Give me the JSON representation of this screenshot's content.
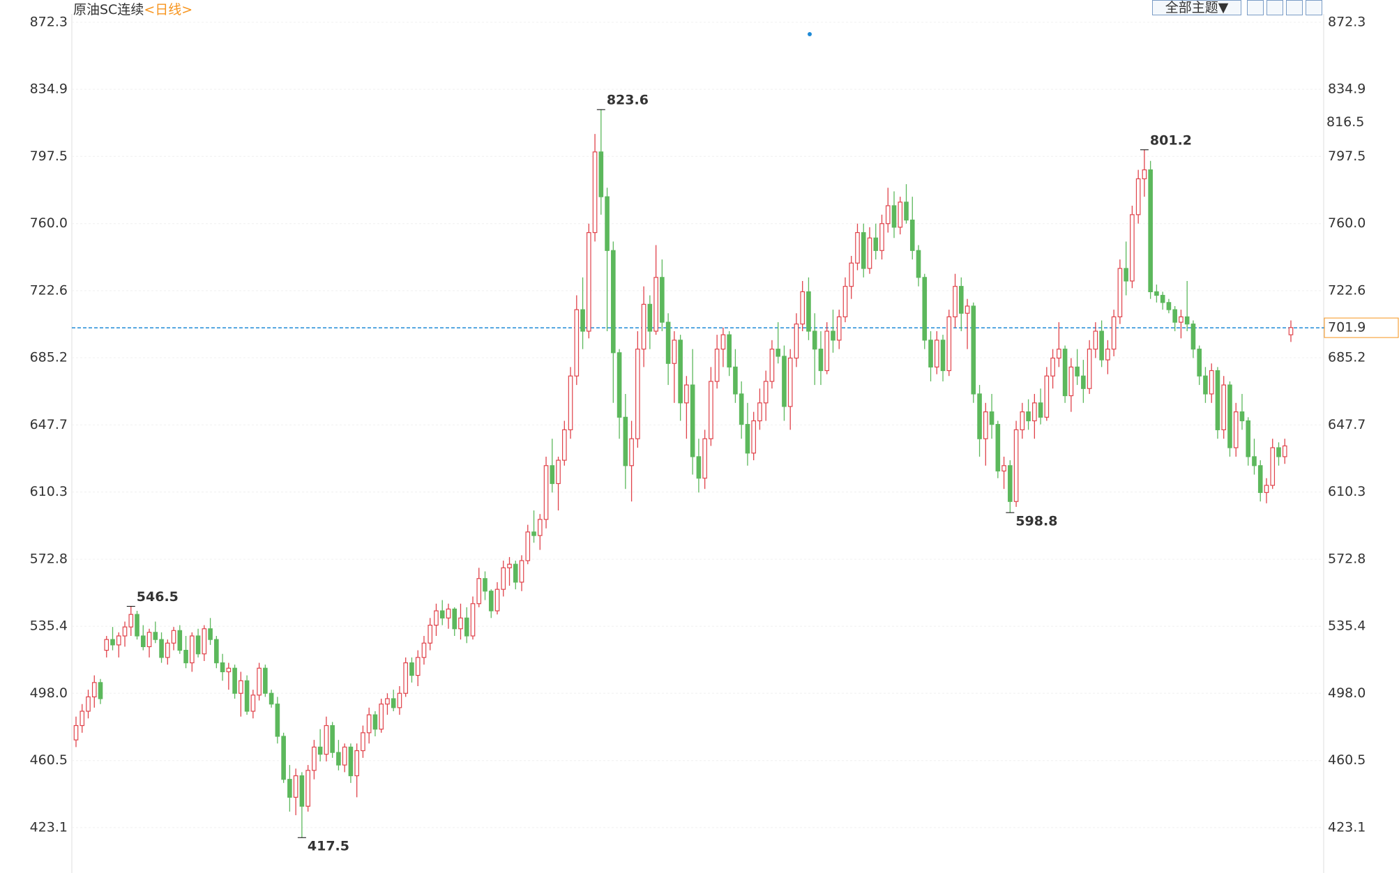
{
  "toolbar": {
    "theme_button": "全部主题▼"
  },
  "chart_data": {
    "type": "candlestick",
    "title": "原油SC连续",
    "period": "<日线>",
    "up_color": "#e0424a",
    "down_color": "#5cb85c",
    "last_price": 701.9,
    "last_price_color": "#f7941d",
    "marker_price": 816.5,
    "price_line_color": "#1f8ad6",
    "grid": true,
    "ylim": [
      399.7,
      872.3
    ],
    "yticks": [
      {
        "value": 423.1,
        "label": "423.1"
      },
      460.5,
      {
        "value": 498,
        "label": "498.0"
      },
      535.4,
      572.8,
      610.3,
      647.7,
      685.2,
      722.6,
      {
        "value": 760,
        "label": "760.0"
      },
      797.5,
      834.9,
      872.3
    ],
    "ohlc": [
      [
        472,
        485,
        468,
        480
      ],
      [
        480,
        492,
        476,
        488
      ],
      [
        488,
        500,
        484,
        496
      ],
      [
        496,
        508,
        490,
        504
      ],
      [
        504,
        506,
        492,
        495
      ],
      [
        522,
        530,
        518,
        528
      ],
      [
        528,
        535,
        522,
        525
      ],
      [
        525,
        532,
        518,
        530
      ],
      [
        530,
        538,
        524,
        535
      ],
      [
        535,
        546.5,
        530,
        542
      ],
      [
        542,
        544,
        528,
        530
      ],
      [
        530,
        536,
        522,
        524
      ],
      [
        524,
        534,
        518,
        532
      ],
      [
        532,
        538,
        526,
        528
      ],
      [
        528,
        532,
        515,
        518
      ],
      [
        518,
        528,
        514,
        526
      ],
      [
        526,
        535,
        522,
        533
      ],
      [
        533,
        536,
        520,
        522
      ],
      [
        522,
        530,
        512,
        515
      ],
      [
        515,
        532,
        510,
        530
      ],
      [
        530,
        534,
        518,
        520
      ],
      [
        520,
        536,
        516,
        534
      ],
      [
        534,
        540,
        525,
        528
      ],
      [
        528,
        530,
        512,
        515
      ],
      [
        515,
        520,
        505,
        510
      ],
      [
        510,
        515,
        500,
        512
      ],
      [
        512,
        514,
        495,
        498
      ],
      [
        498,
        510,
        485,
        505
      ],
      [
        505,
        508,
        486,
        488
      ],
      [
        488,
        500,
        484,
        497
      ],
      [
        497,
        515,
        494,
        512
      ],
      [
        512,
        514,
        496,
        498
      ],
      [
        498,
        500,
        490,
        492
      ],
      [
        492,
        496,
        470,
        474
      ],
      [
        474,
        476,
        448,
        450
      ],
      [
        450,
        458,
        432,
        440
      ],
      [
        440,
        456,
        430,
        452
      ],
      [
        452,
        454,
        417.5,
        435
      ],
      [
        435,
        458,
        432,
        455
      ],
      [
        455,
        472,
        450,
        468
      ],
      [
        468,
        478,
        460,
        464
      ],
      [
        464,
        485,
        460,
        480
      ],
      [
        480,
        482,
        462,
        465
      ],
      [
        465,
        472,
        455,
        458
      ],
      [
        458,
        470,
        454,
        468
      ],
      [
        468,
        470,
        448,
        452
      ],
      [
        452,
        470,
        440,
        466
      ],
      [
        466,
        480,
        462,
        476
      ],
      [
        476,
        490,
        470,
        486
      ],
      [
        486,
        488,
        474,
        478
      ],
      [
        478,
        495,
        476,
        492
      ],
      [
        492,
        498,
        486,
        495
      ],
      [
        495,
        500,
        488,
        490
      ],
      [
        490,
        502,
        486,
        498
      ],
      [
        498,
        518,
        496,
        515
      ],
      [
        515,
        518,
        504,
        508
      ],
      [
        508,
        522,
        502,
        518
      ],
      [
        518,
        530,
        514,
        526
      ],
      [
        526,
        540,
        522,
        536
      ],
      [
        536,
        548,
        530,
        544
      ],
      [
        544,
        550,
        536,
        540
      ],
      [
        540,
        548,
        534,
        545
      ],
      [
        545,
        546,
        530,
        534
      ],
      [
        534,
        548,
        528,
        540
      ],
      [
        540,
        546,
        526,
        530
      ],
      [
        530,
        552,
        528,
        548
      ],
      [
        548,
        568,
        546,
        562
      ],
      [
        562,
        566,
        550,
        555
      ],
      [
        555,
        556,
        540,
        544
      ],
      [
        544,
        560,
        542,
        556
      ],
      [
        556,
        572,
        552,
        568
      ],
      [
        568,
        574,
        558,
        570
      ],
      [
        570,
        572,
        556,
        560
      ],
      [
        560,
        575,
        555,
        572
      ],
      [
        572,
        592,
        570,
        588
      ],
      [
        588,
        600,
        582,
        586
      ],
      [
        586,
        598,
        578,
        595
      ],
      [
        595,
        630,
        590,
        625
      ],
      [
        625,
        640,
        610,
        615
      ],
      [
        615,
        630,
        600,
        628
      ],
      [
        628,
        650,
        625,
        645
      ],
      [
        645,
        680,
        640,
        675
      ],
      [
        675,
        720,
        670,
        712
      ],
      [
        712,
        730,
        690,
        700
      ],
      [
        700,
        760,
        696,
        755
      ],
      [
        755,
        810,
        750,
        800
      ],
      [
        800,
        823.6,
        765,
        775
      ],
      [
        775,
        780,
        700,
        745
      ],
      [
        745,
        750,
        660,
        688
      ],
      [
        688,
        690,
        640,
        652
      ],
      [
        652,
        665,
        612,
        625
      ],
      [
        625,
        650,
        605,
        640
      ],
      [
        640,
        700,
        635,
        690
      ],
      [
        690,
        725,
        680,
        715
      ],
      [
        715,
        720,
        690,
        700
      ],
      [
        700,
        748,
        698,
        730
      ],
      [
        730,
        740,
        700,
        705
      ],
      [
        705,
        710,
        670,
        682
      ],
      [
        682,
        700,
        660,
        695
      ],
      [
        695,
        698,
        650,
        660
      ],
      [
        660,
        675,
        640,
        670
      ],
      [
        670,
        690,
        620,
        630
      ],
      [
        630,
        640,
        610,
        618
      ],
      [
        618,
        645,
        612,
        640
      ],
      [
        640,
        680,
        636,
        672
      ],
      [
        672,
        698,
        668,
        690
      ],
      [
        690,
        702,
        680,
        698
      ],
      [
        698,
        700,
        675,
        680
      ],
      [
        680,
        690,
        660,
        665
      ],
      [
        665,
        672,
        640,
        648
      ],
      [
        648,
        660,
        625,
        632
      ],
      [
        632,
        655,
        628,
        650
      ],
      [
        650,
        668,
        645,
        660
      ],
      [
        660,
        678,
        650,
        672
      ],
      [
        672,
        695,
        668,
        690
      ],
      [
        690,
        705,
        682,
        686
      ],
      [
        686,
        692,
        650,
        658
      ],
      [
        658,
        690,
        645,
        685
      ],
      [
        685,
        710,
        680,
        704
      ],
      [
        704,
        728,
        700,
        722
      ],
      [
        722,
        730,
        695,
        700
      ],
      [
        700,
        710,
        670,
        690
      ],
      [
        690,
        700,
        670,
        678
      ],
      [
        678,
        705,
        676,
        700
      ],
      [
        700,
        712,
        688,
        695
      ],
      [
        695,
        712,
        690,
        708
      ],
      [
        708,
        730,
        705,
        725
      ],
      [
        725,
        742,
        718,
        738
      ],
      [
        738,
        760,
        734,
        755
      ],
      [
        755,
        760,
        730,
        735
      ],
      [
        735,
        758,
        732,
        752
      ],
      [
        752,
        760,
        740,
        745
      ],
      [
        745,
        765,
        740,
        760
      ],
      [
        760,
        780,
        755,
        770
      ],
      [
        770,
        778,
        752,
        758
      ],
      [
        758,
        775,
        754,
        772
      ],
      [
        772,
        782,
        760,
        762
      ],
      [
        762,
        775,
        740,
        745
      ],
      [
        745,
        748,
        725,
        730
      ],
      [
        730,
        732,
        690,
        695
      ],
      [
        695,
        700,
        672,
        680
      ],
      [
        680,
        700,
        676,
        695
      ],
      [
        695,
        698,
        672,
        678
      ],
      [
        678,
        712,
        675,
        708
      ],
      [
        708,
        732,
        702,
        725
      ],
      [
        725,
        730,
        700,
        710
      ],
      [
        710,
        718,
        690,
        714
      ],
      [
        714,
        716,
        660,
        665
      ],
      [
        665,
        670,
        630,
        640
      ],
      [
        640,
        660,
        625,
        655
      ],
      [
        655,
        665,
        640,
        648
      ],
      [
        648,
        650,
        618,
        622
      ],
      [
        622,
        630,
        612,
        625
      ],
      [
        625,
        628,
        598.8,
        605
      ],
      [
        605,
        650,
        602,
        645
      ],
      [
        645,
        660,
        640,
        655
      ],
      [
        655,
        662,
        645,
        650
      ],
      [
        650,
        665,
        640,
        660
      ],
      [
        660,
        668,
        648,
        652
      ],
      [
        652,
        680,
        650,
        675
      ],
      [
        675,
        690,
        668,
        685
      ],
      [
        685,
        705,
        680,
        690
      ],
      [
        690,
        692,
        660,
        664
      ],
      [
        664,
        685,
        655,
        680
      ],
      [
        680,
        690,
        670,
        675
      ],
      [
        675,
        684,
        660,
        668
      ],
      [
        668,
        695,
        665,
        690
      ],
      [
        690,
        705,
        685,
        700
      ],
      [
        700,
        706,
        680,
        684
      ],
      [
        684,
        695,
        676,
        690
      ],
      [
        690,
        712,
        686,
        708
      ],
      [
        708,
        740,
        704,
        735
      ],
      [
        735,
        750,
        720,
        728
      ],
      [
        728,
        770,
        724,
        765
      ],
      [
        765,
        790,
        760,
        785
      ],
      [
        785,
        801.2,
        775,
        790
      ],
      [
        790,
        795,
        718,
        722
      ],
      [
        722,
        726,
        716,
        720
      ],
      [
        720,
        722,
        712,
        716
      ],
      [
        716,
        718,
        710,
        712
      ],
      [
        712,
        714,
        700,
        705
      ],
      [
        705,
        712,
        696,
        708
      ],
      [
        708,
        728,
        700,
        704
      ],
      [
        704,
        706,
        685,
        690
      ],
      [
        690,
        692,
        670,
        675
      ],
      [
        675,
        680,
        660,
        665
      ],
      [
        665,
        682,
        660,
        678
      ],
      [
        678,
        680,
        640,
        645
      ],
      [
        645,
        675,
        640,
        670
      ],
      [
        670,
        672,
        630,
        635
      ],
      [
        635,
        660,
        630,
        655
      ],
      [
        655,
        665,
        645,
        650
      ],
      [
        650,
        652,
        625,
        630
      ],
      [
        630,
        640,
        620,
        625
      ],
      [
        625,
        628,
        605,
        610
      ],
      [
        610,
        618,
        604,
        614
      ],
      [
        614,
        640,
        612,
        635
      ],
      [
        635,
        638,
        625,
        630
      ],
      [
        630,
        640,
        626,
        636
      ],
      [
        698,
        706,
        694,
        702
      ]
    ]
  }
}
